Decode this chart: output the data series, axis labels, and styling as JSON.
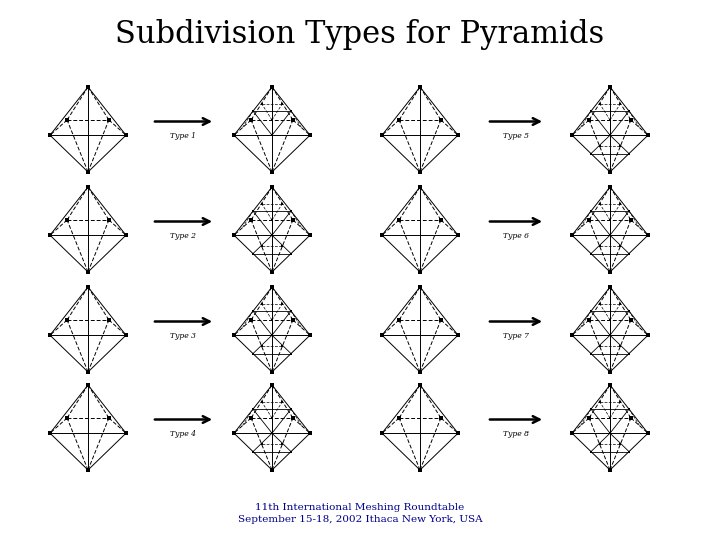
{
  "title": "Subdivision Types for Pyramids",
  "title_fontsize": 22,
  "title_font": "serif",
  "footer_line1": "11th International Meshing Roundtable",
  "footer_line2": "September 15-18, 2002 Ithaca New York, USA",
  "footer_fontsize": 7.5,
  "footer_color": "#00008B",
  "bg_color": "#ffffff",
  "type_labels_left": [
    "Type 1",
    "Type 2",
    "Type 3",
    "Type 4"
  ],
  "type_labels_right": [
    "Type 5",
    "Type 6",
    "Type 7",
    "Type 8"
  ],
  "line_color": "#000000"
}
